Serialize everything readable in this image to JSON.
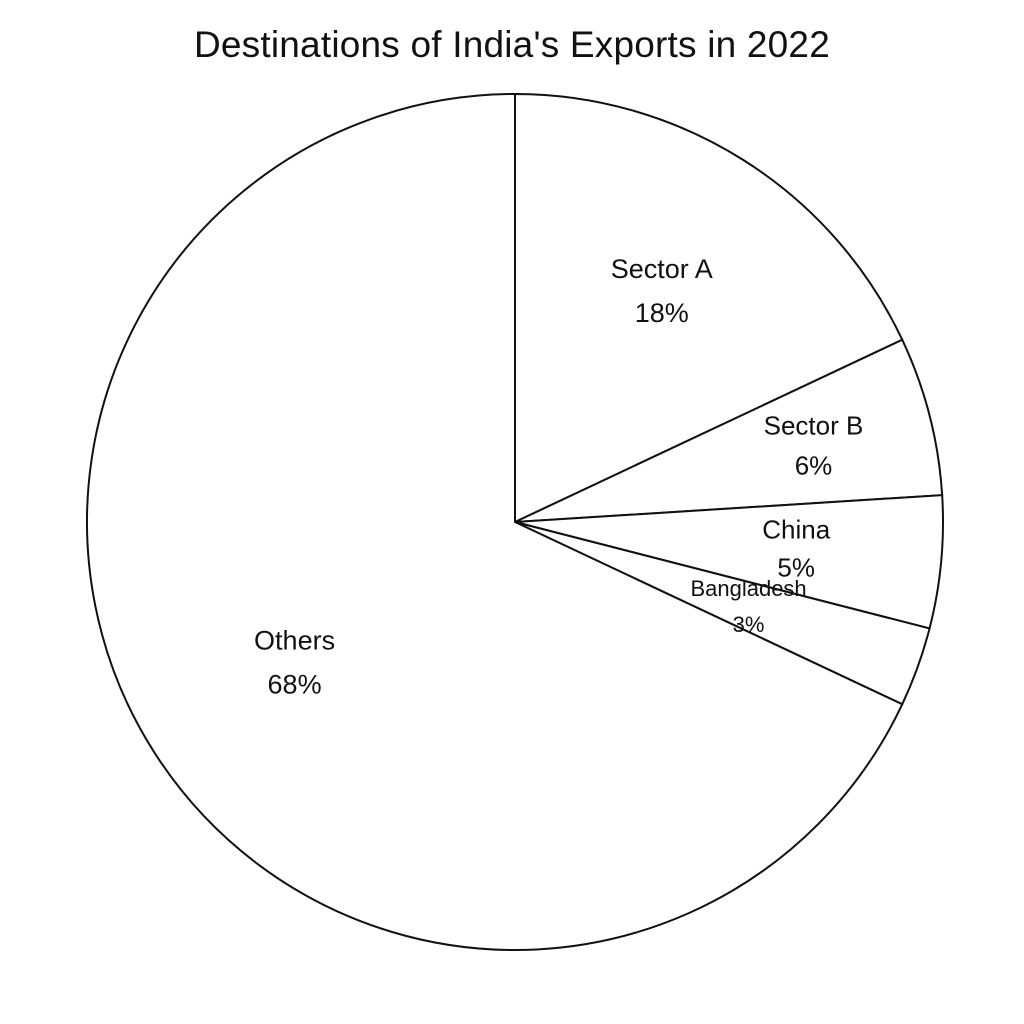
{
  "chart_data": {
    "type": "pie",
    "title": "Destinations of India's Exports in 2022",
    "slices": [
      {
        "label": "Sector A",
        "value_label": "18%",
        "value": 18
      },
      {
        "label": "Sector B",
        "value_label": "6%",
        "value": 6
      },
      {
        "label": "China",
        "value_label": "5%",
        "value": 5
      },
      {
        "label": "Bangladesh",
        "value_label": "3%",
        "value": 3
      },
      {
        "label": "Others",
        "value_label": "68%",
        "value": 68
      }
    ],
    "start_angle": "12 o'clock",
    "direction": "clockwise",
    "legend": "none",
    "fill_color": "#ffffff",
    "stroke_color": "#111111"
  }
}
